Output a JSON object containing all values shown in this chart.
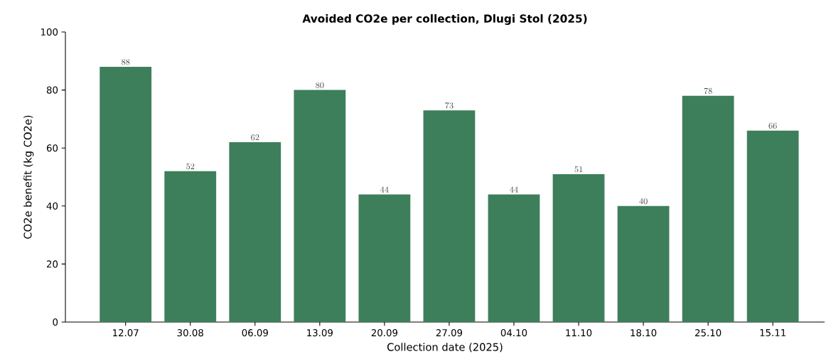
{
  "chart_data": {
    "type": "bar",
    "title": "Avoided CO2e per collection, Dlugi Stol (2025)",
    "xlabel": "Collection date (2025)",
    "ylabel": "CO2e benefit (kg CO2e)",
    "categories": [
      "12.07",
      "30.08",
      "06.09",
      "13.09",
      "20.09",
      "27.09",
      "04.10",
      "11.10",
      "18.10",
      "25.10",
      "15.11"
    ],
    "values": [
      88,
      52,
      62,
      80,
      44,
      73,
      44,
      51,
      40,
      78,
      66
    ],
    "color": "#3d7f5a",
    "ylim": [
      0,
      100
    ],
    "yticks": [
      0,
      20,
      40,
      60,
      80,
      100
    ],
    "data_labels": true
  }
}
